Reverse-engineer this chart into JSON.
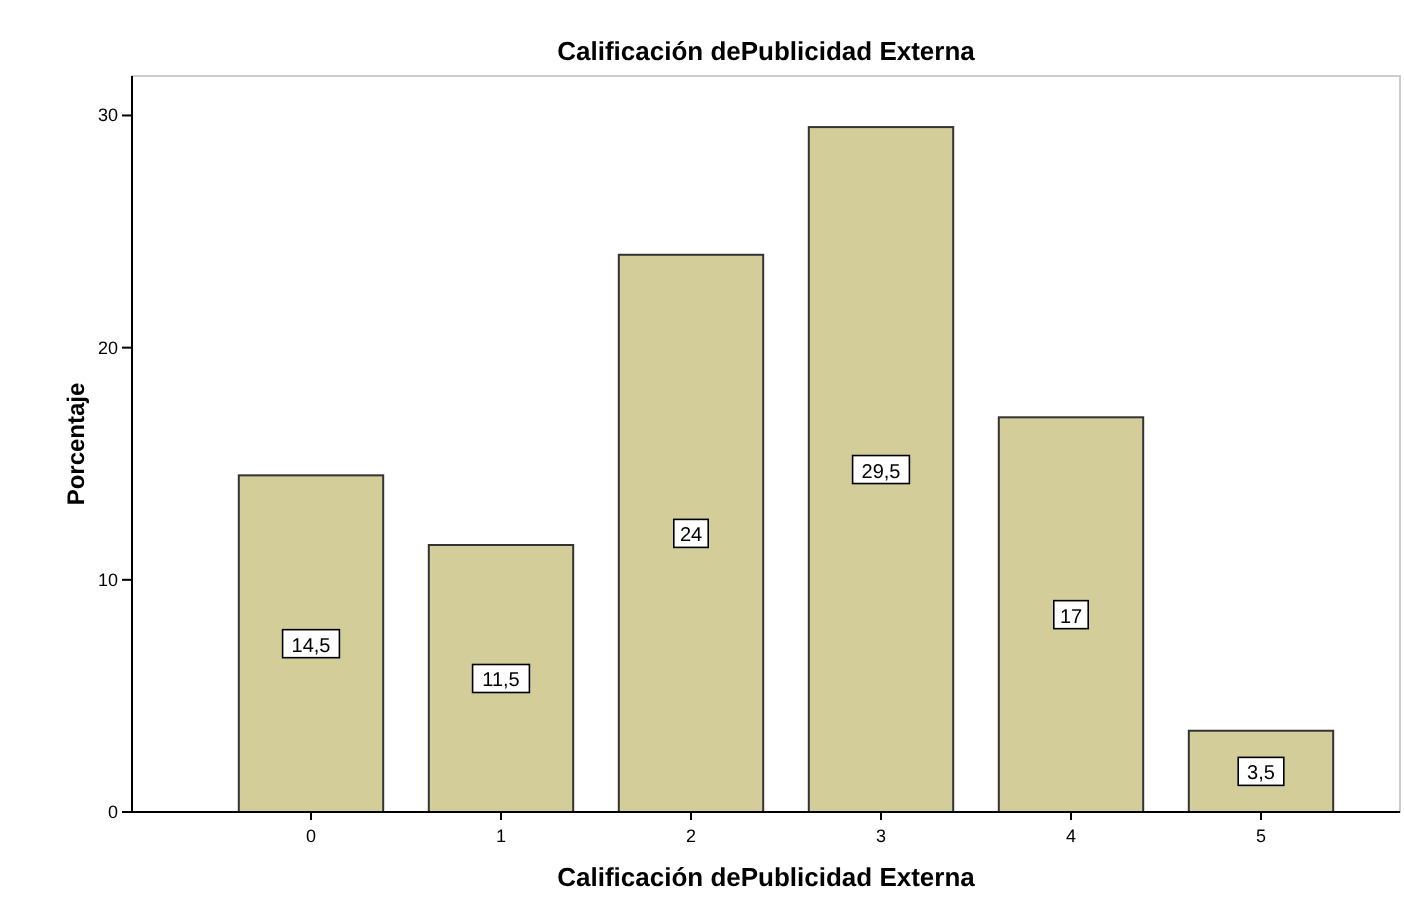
{
  "chart_data": {
    "type": "bar",
    "title": "Calificación dePublicidad Externa",
    "xlabel": "Calificación dePublicidad Externa",
    "ylabel": "Porcentaje",
    "categories": [
      "0",
      "1",
      "2",
      "3",
      "4",
      "5"
    ],
    "values": [
      14.5,
      11.5,
      24,
      29.5,
      17,
      3.5
    ],
    "value_labels": [
      "14,5",
      "11,5",
      "24",
      "29,5",
      "17",
      "3,5"
    ],
    "color": "#d3cd99",
    "ylim": [
      0,
      31.7
    ],
    "yticks": [
      0,
      10,
      20,
      30
    ],
    "grid": false
  }
}
